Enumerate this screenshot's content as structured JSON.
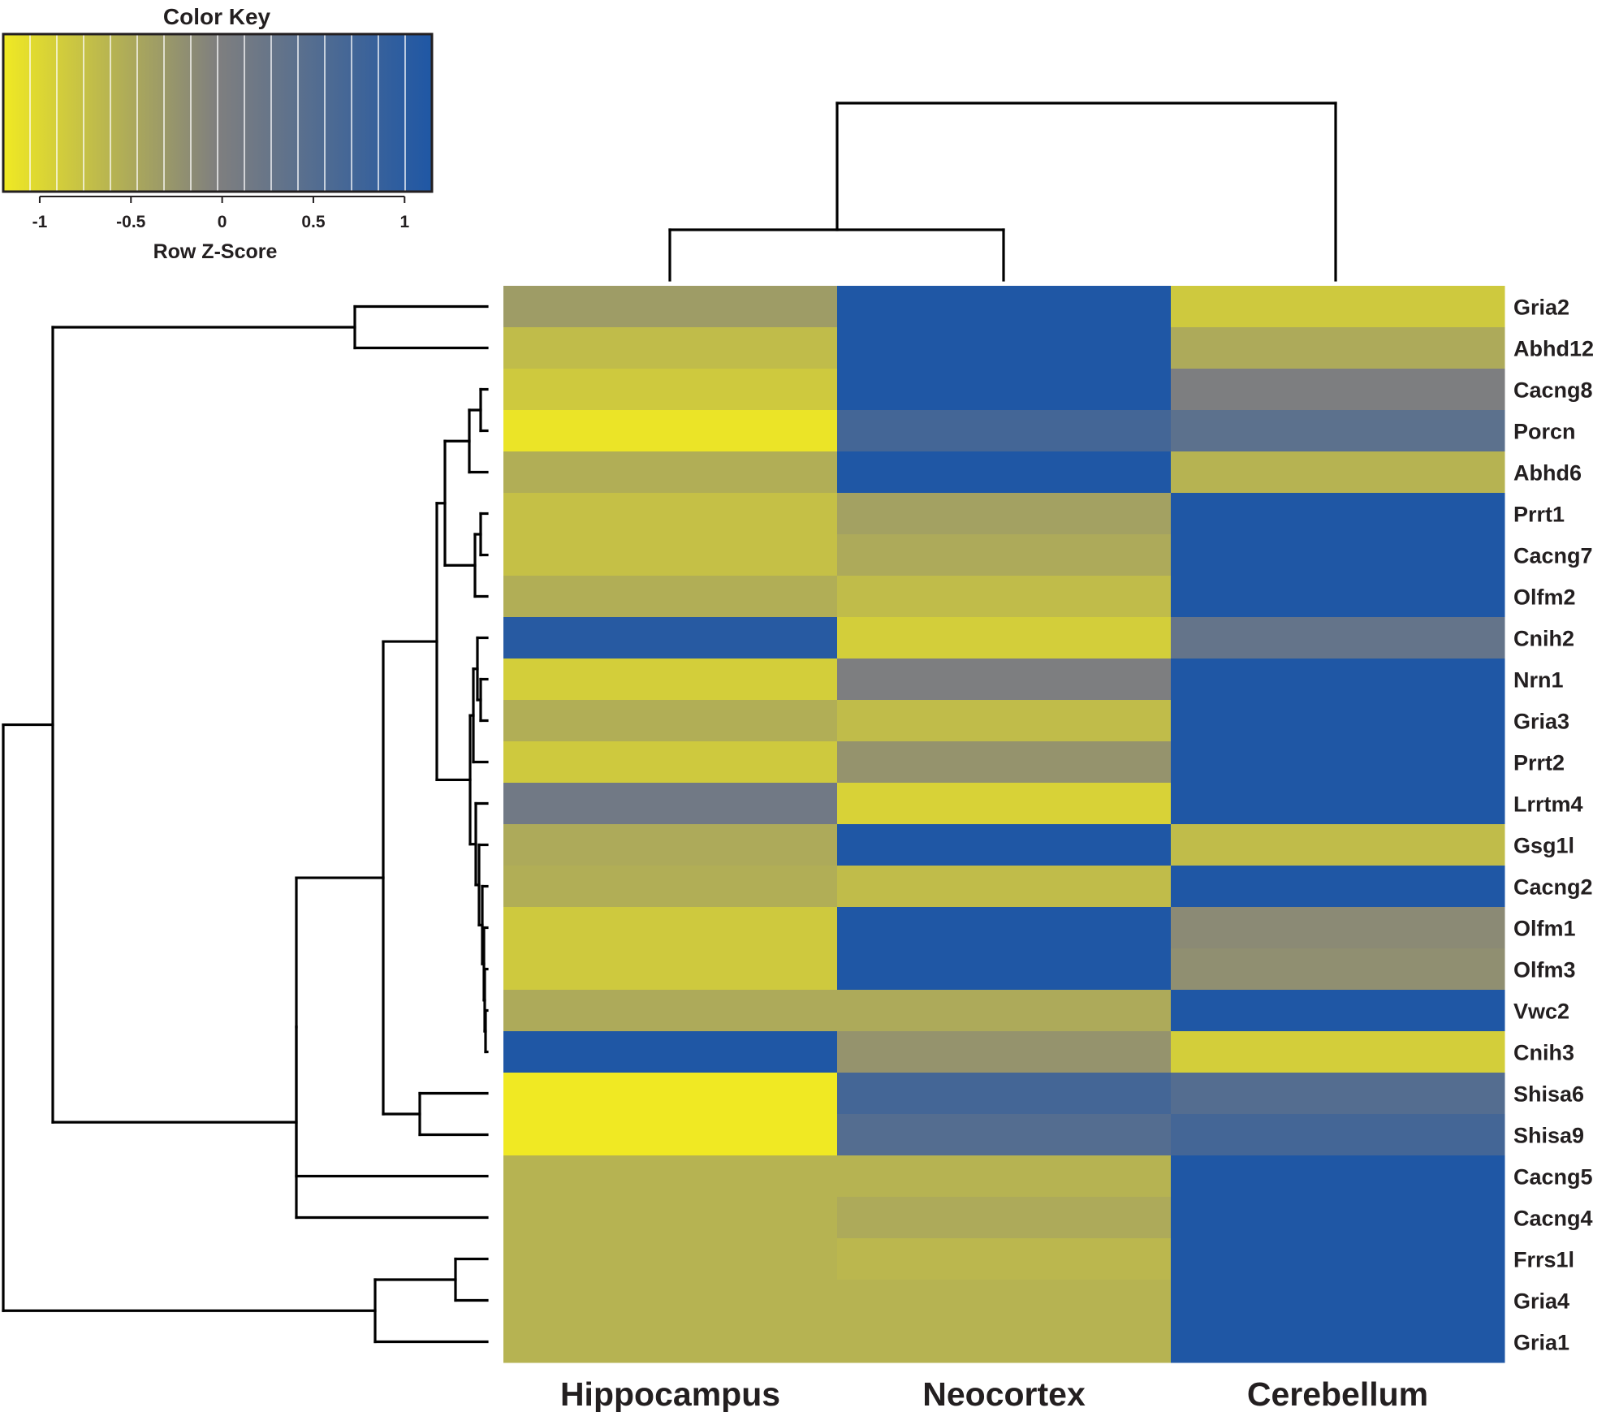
{
  "chart_data": {
    "type": "heatmap",
    "title": "",
    "xlabel": "",
    "ylabel": "",
    "columns": [
      "Hippocampus",
      "Neocortex",
      "Cerebellum"
    ],
    "rows": [
      "Gria2",
      "Abhd12",
      "Cacng8",
      "Porcn",
      "Abhd6",
      "Prrt1",
      "Cacng7",
      "Olfm2",
      "Cnih2",
      "Nrn1",
      "Gria3",
      "Prrt2",
      "Lrrtm4",
      "Gsg1l",
      "Cacng2",
      "Olfm1",
      "Olfm3",
      "Vwc2",
      "Cnih3",
      "Shisa6",
      "Shisa9",
      "Cacng5",
      "Cacng4",
      "Frrs1l",
      "Gria4",
      "Gria1"
    ],
    "values": [
      [
        -0.35,
        1.15,
        -0.85
      ],
      [
        -0.7,
        1.15,
        -0.5
      ],
      [
        -0.85,
        1.15,
        0
      ],
      [
        -1.15,
        0.7,
        0.4
      ],
      [
        -0.55,
        1.15,
        -0.6
      ],
      [
        -0.75,
        -0.4,
        1.15
      ],
      [
        -0.75,
        -0.5,
        1.15
      ],
      [
        -0.55,
        -0.7,
        1.15
      ],
      [
        1.05,
        -0.9,
        0.3
      ],
      [
        -0.9,
        0,
        1.15
      ],
      [
        -0.55,
        -0.7,
        1.15
      ],
      [
        -0.85,
        -0.25,
        1.15
      ],
      [
        0.15,
        -0.95,
        1.15
      ],
      [
        -0.5,
        1.15,
        -0.7
      ],
      [
        -0.55,
        -0.7,
        1.15
      ],
      [
        -0.85,
        1.15,
        -0.15
      ],
      [
        -0.85,
        1.15,
        -0.2
      ],
      [
        -0.5,
        -0.5,
        1.15
      ],
      [
        1.15,
        -0.25,
        -0.9
      ],
      [
        -1.2,
        0.7,
        0.5
      ],
      [
        -1.2,
        0.5,
        0.7
      ],
      [
        -0.6,
        -0.6,
        1.15
      ],
      [
        -0.6,
        -0.5,
        1.15
      ],
      [
        -0.6,
        -0.65,
        1.15
      ],
      [
        -0.6,
        -0.6,
        1.15
      ],
      [
        -0.6,
        -0.6,
        1.15
      ]
    ],
    "color_key": {
      "title": "Color Key",
      "xlabel": "Row Z-Score",
      "ticks": [
        "-1",
        "-0.5",
        "0",
        "0.5",
        "1"
      ],
      "tick_values": [
        -1,
        -0.5,
        0,
        0.5,
        1
      ],
      "range": [
        -1.2,
        1.15
      ],
      "colors": {
        "low": "#f0e923",
        "mid": "#7f7f7f",
        "high": "#1f57a5"
      }
    },
    "legend_position": "top-left"
  },
  "colors": {
    "dendrogram": "#000000",
    "text": "#231f20",
    "key_border": "#231f20"
  }
}
